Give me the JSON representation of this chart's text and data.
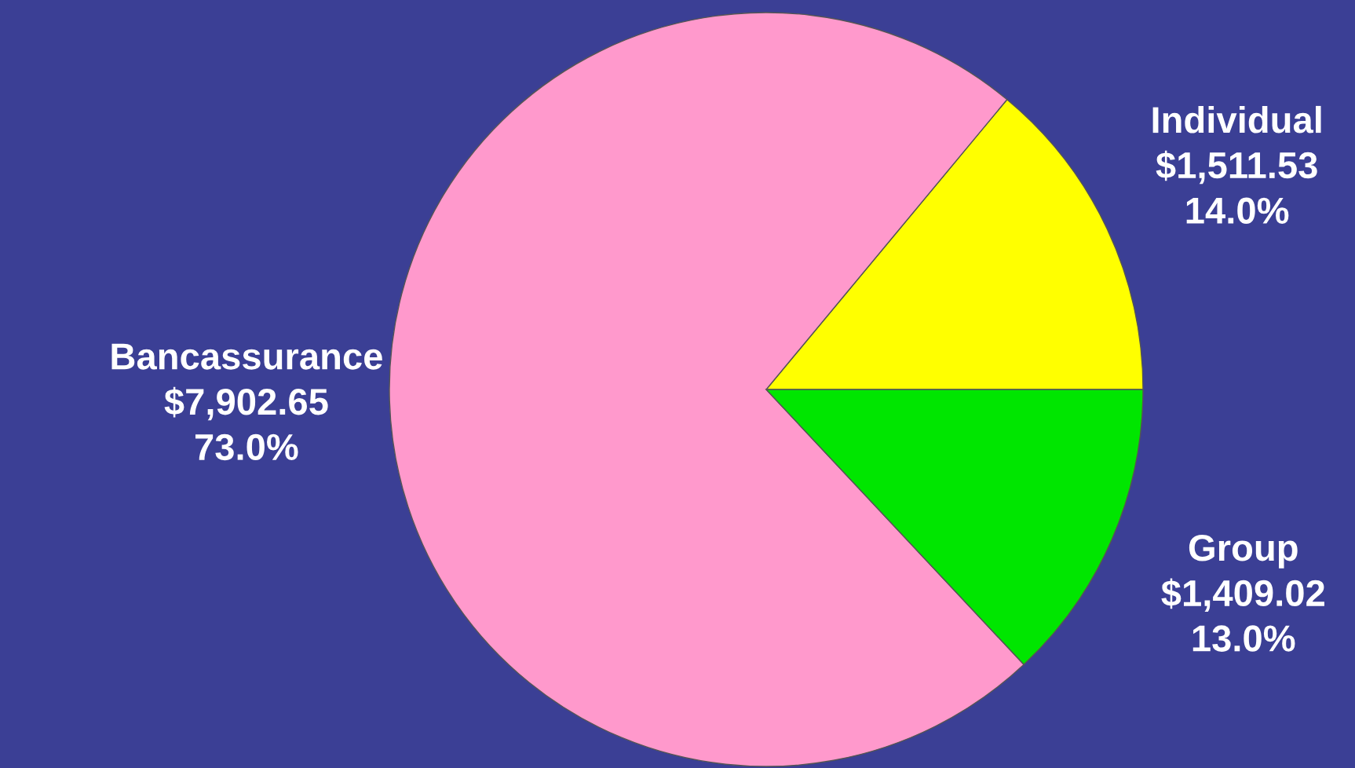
{
  "chart_data": {
    "type": "pie",
    "categories": [
      "Individual",
      "Bancassurance",
      "Group"
    ],
    "values": [
      1511.53,
      7902.65,
      1409.02
    ],
    "value_labels": [
      "$1,511.53\n14.0%",
      "$7,902.65\n73.0%",
      "$1,409.02\n13.0%"
    ],
    "colors": [
      "#ffff00",
      "#ff99cc",
      "#00e600"
    ],
    "legend": false
  }
}
